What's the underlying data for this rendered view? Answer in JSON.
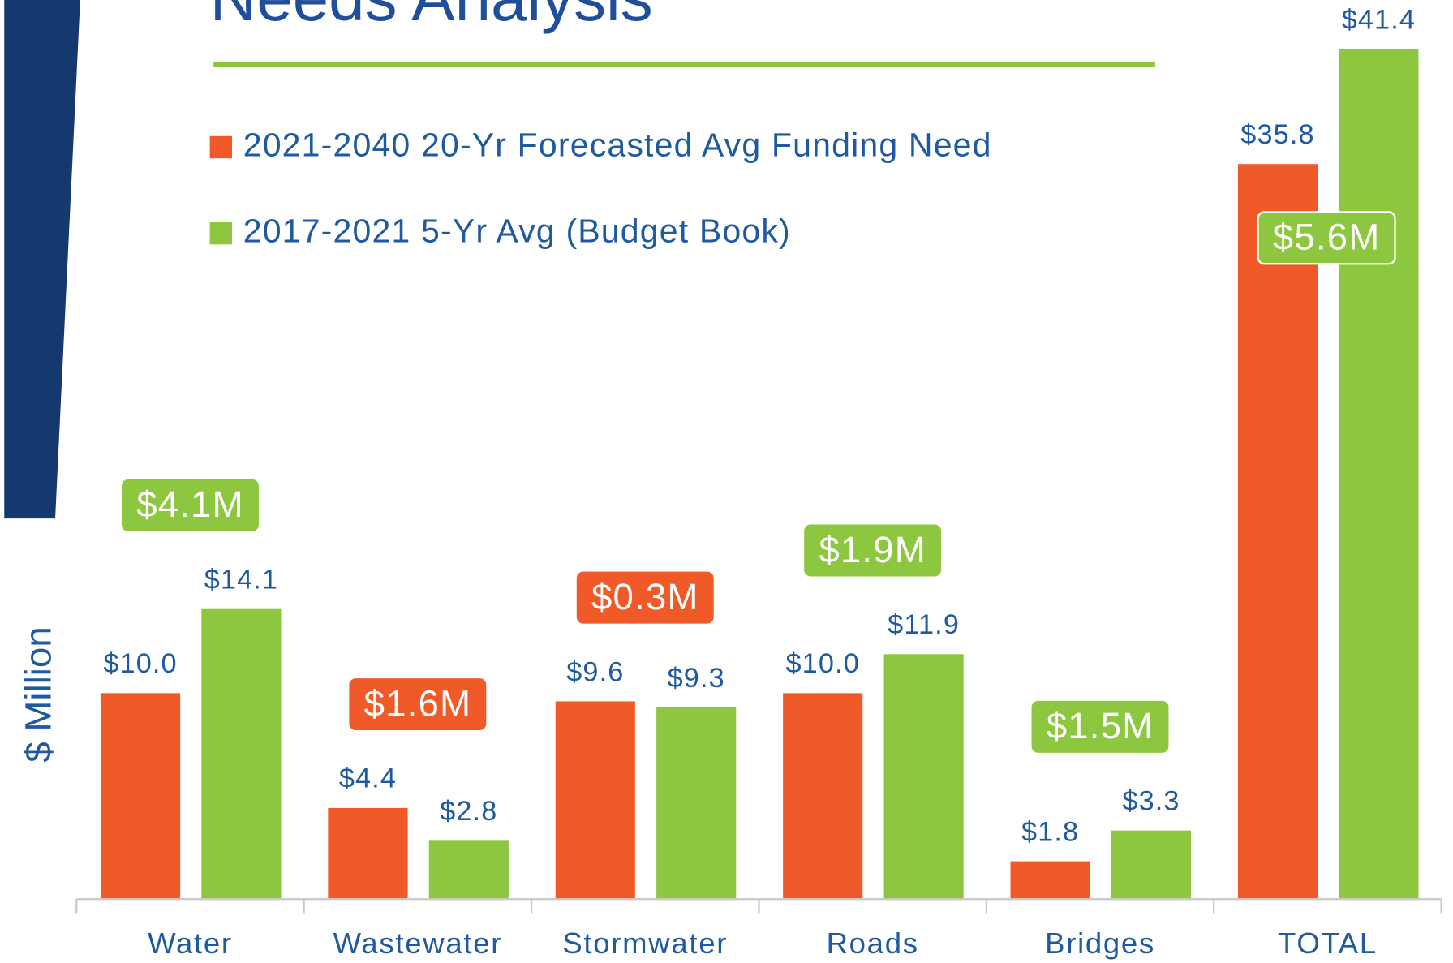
{
  "chart_data": {
    "type": "bar",
    "title": "Needs Analysis",
    "y_label": "$ Million",
    "categories": [
      "Water",
      "Wastewater",
      "Stormwater",
      "Roads",
      "Bridges",
      "TOTAL"
    ],
    "series": [
      {
        "name": "2021-2040 20-Yr Forecasted Avg Funding Need",
        "color": "#f05a28",
        "values": [
          10.0,
          4.4,
          9.6,
          10.0,
          1.8,
          35.8
        ],
        "value_labels": [
          "$10.0",
          "$4.4",
          "$9.6",
          "$10.0",
          "$1.8",
          "$35.8"
        ]
      },
      {
        "name": "2017-2021 5-Yr Avg (Budget Book)",
        "color": "#8dc63f",
        "values": [
          14.1,
          2.8,
          9.3,
          11.9,
          3.3,
          41.4
        ],
        "value_labels": [
          "$14.1",
          "$2.8",
          "$9.3",
          "$11.9",
          "$3.3",
          "$41.4"
        ]
      }
    ],
    "annotations": [
      {
        "text": "$4.1M",
        "color": "#8dc63f"
      },
      {
        "text": "$1.6M",
        "color": "#f05a28"
      },
      {
        "text": "$0.3M",
        "color": "#f05a28"
      },
      {
        "text": "$1.9M",
        "color": "#8dc63f"
      },
      {
        "text": "$1.5M",
        "color": "#8dc63f"
      },
      {
        "text": "$5.6M",
        "color": "#8dc63f"
      }
    ],
    "ylim": [
      0,
      43.8
    ]
  }
}
